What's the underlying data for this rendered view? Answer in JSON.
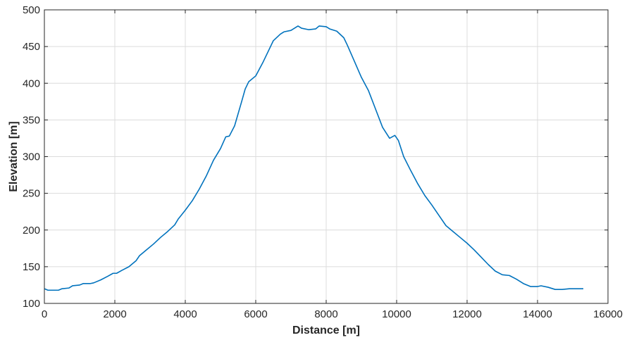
{
  "chart_data": {
    "type": "line",
    "title": "",
    "xlabel": "Distance [m]",
    "ylabel": "Elevation [m]",
    "xlim": [
      0,
      16000
    ],
    "ylim": [
      100,
      500
    ],
    "xticks": [
      0,
      2000,
      4000,
      6000,
      8000,
      10000,
      12000,
      14000,
      16000
    ],
    "yticks": [
      100,
      150,
      200,
      250,
      300,
      350,
      400,
      450,
      500
    ],
    "grid": true,
    "legend": "none",
    "series": [
      {
        "color": "#0072BD",
        "x": [
          0,
          100,
          400,
          500,
          700,
          800,
          1000,
          1100,
          1300,
          1400,
          1600,
          1800,
          1950,
          2050,
          2200,
          2400,
          2600,
          2700,
          2900,
          3100,
          3300,
          3500,
          3700,
          3800,
          4000,
          4200,
          4400,
          4600,
          4800,
          5000,
          5150,
          5250,
          5400,
          5600,
          5700,
          5800,
          6000,
          6200,
          6400,
          6500,
          6700,
          6800,
          7000,
          7200,
          7300,
          7500,
          7700,
          7800,
          8000,
          8100,
          8300,
          8500,
          8600,
          8800,
          9000,
          9200,
          9400,
          9600,
          9800,
          9950,
          10050,
          10200,
          10400,
          10600,
          10800,
          11000,
          11200,
          11400,
          11600,
          11800,
          12000,
          12200,
          12400,
          12600,
          12800,
          13000,
          13200,
          13400,
          13600,
          13800,
          14000,
          14100,
          14300,
          14500,
          14700,
          14900,
          15100,
          15300
        ],
        "y": [
          120,
          118,
          118,
          120,
          121,
          124,
          125,
          127,
          127,
          128,
          132,
          137,
          141,
          141,
          145,
          150,
          158,
          165,
          173,
          181,
          190,
          198,
          207,
          215,
          227,
          240,
          256,
          274,
          295,
          311,
          327,
          328,
          342,
          375,
          392,
          402,
          410,
          428,
          448,
          458,
          467,
          470,
          472,
          478,
          475,
          473,
          474,
          478,
          477,
          474,
          471,
          462,
          452,
          430,
          408,
          390,
          365,
          340,
          325,
          329,
          322,
          300,
          281,
          263,
          247,
          234,
          220,
          206,
          198,
          190,
          182,
          173,
          163,
          153,
          144,
          139,
          138,
          133,
          127,
          123,
          123,
          124,
          122,
          119,
          119,
          120,
          120,
          120
        ]
      }
    ]
  }
}
